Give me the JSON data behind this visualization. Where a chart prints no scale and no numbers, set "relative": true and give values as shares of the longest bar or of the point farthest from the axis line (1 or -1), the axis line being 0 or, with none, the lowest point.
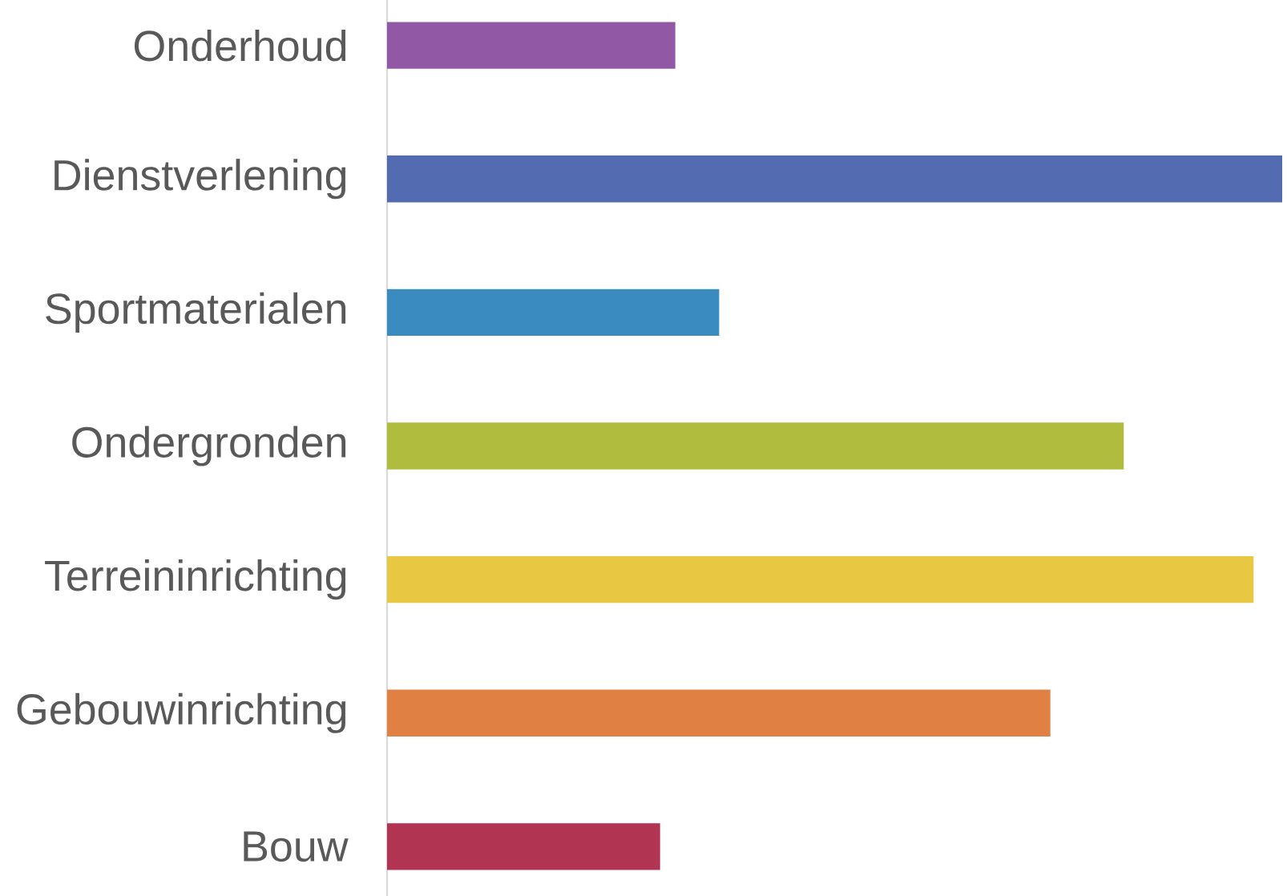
{
  "chart_data": {
    "type": "bar",
    "orientation": "horizontal",
    "relative": true,
    "categories": [
      "Onderhoud",
      "Dienstverlening",
      "Sportmaterialen",
      "Ondergronden",
      "Terreininrichting",
      "Gebouwinrichting",
      "Bouw"
    ],
    "values": [
      0.322,
      1,
      0.371,
      0.823,
      0.968,
      0.741,
      0.305
    ],
    "colors": [
      "#9159a5",
      "#536bb1",
      "#3a8bbf",
      "#b0bc3d",
      "#e8c743",
      "#e08042",
      "#b13453"
    ]
  }
}
